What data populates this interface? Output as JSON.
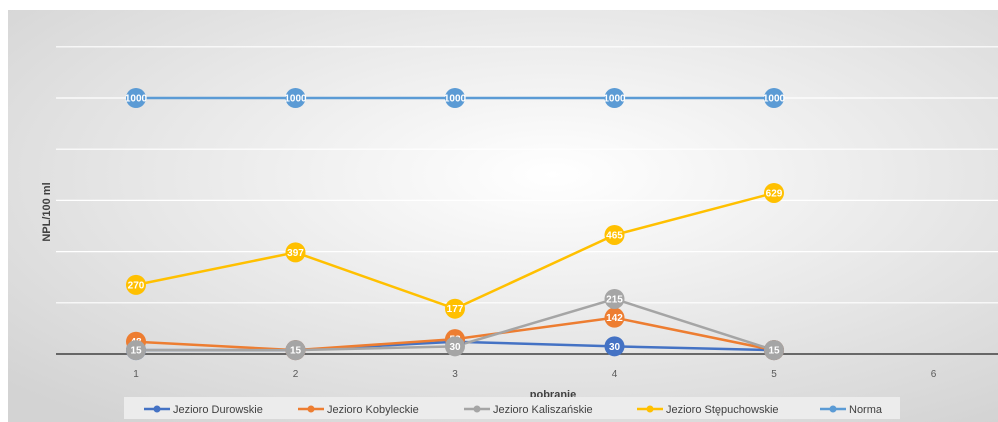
{
  "chart_data": {
    "type": "line",
    "title": "",
    "xlabel": "pobranie",
    "ylabel": "NPL/100 ml",
    "categories": [
      "1",
      "2",
      "3",
      "4",
      "5",
      "6"
    ],
    "ylim": [
      0,
      1000
    ],
    "grid": true,
    "legend_position": "bottom",
    "series": [
      {
        "name": "Jezioro Durowskie",
        "color": "#4472C4",
        "values": [
          15,
          15,
          48,
          30,
          15,
          null
        ],
        "labels": [
          "15",
          "15",
          "48",
          "30",
          "15",
          ""
        ]
      },
      {
        "name": "Jezioro Kobyleckie",
        "color": "#ED7D31",
        "values": [
          48,
          15,
          58,
          142,
          15,
          null
        ],
        "labels": [
          "48",
          "15",
          "58",
          "142",
          "15",
          ""
        ]
      },
      {
        "name": "Jezioro Kaliszańskie",
        "color": "#A5A5A5",
        "values": [
          15,
          15,
          30,
          215,
          15,
          null
        ],
        "labels": [
          "15",
          "15",
          "30",
          "215",
          "15",
          ""
        ]
      },
      {
        "name": "Jezioro Stępuchowskie",
        "color": "#FFC000",
        "values": [
          270,
          397,
          177,
          465,
          629,
          null
        ],
        "labels": [
          "270",
          "397",
          "177",
          "465",
          "629",
          ""
        ]
      },
      {
        "name": "Norma",
        "color": "#5B9BD5",
        "values": [
          1000,
          1000,
          1000,
          1000,
          1000,
          null
        ],
        "labels": [
          "1000",
          "1000",
          "1000",
          "1000",
          "1000",
          ""
        ]
      }
    ]
  }
}
